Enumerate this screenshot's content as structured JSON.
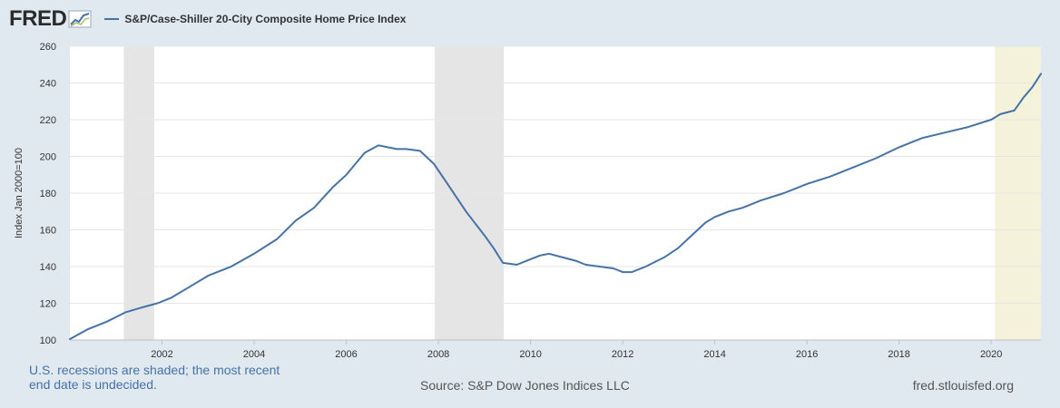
{
  "header": {
    "logo_text": "FRED",
    "legend_label": "S&P/Case-Shiller 20-City Composite Home Price Index"
  },
  "footer": {
    "note": "U.S. recessions are shaded; the most recent end date is undecided.",
    "source": "Source: S&P Dow Jones Indices LLC",
    "url": "fred.stlouisfed.org"
  },
  "colors": {
    "line": "#4572a7",
    "recession": "#e5e5e5",
    "undecided_recession": "#f5f2dc",
    "background": "#e1e9f0"
  },
  "chart_data": {
    "type": "line",
    "title": "",
    "xlabel": "",
    "ylabel": "Index Jan 2000=100",
    "ylim": [
      100,
      260
    ],
    "xlim": [
      2000.0,
      2021.08
    ],
    "yticks": [
      100,
      120,
      140,
      160,
      180,
      200,
      220,
      240,
      260
    ],
    "xticks": [
      "2002",
      "2004",
      "2006",
      "2008",
      "2010",
      "2012",
      "2014",
      "2016",
      "2018",
      "2020"
    ],
    "grid": true,
    "legend": "top-left",
    "recessions": [
      {
        "start": 2001.17,
        "end": 2001.83
      },
      {
        "start": 2007.92,
        "end": 2009.42
      },
      {
        "start": 2020.08,
        "end": 2021.08,
        "undecided": true
      }
    ],
    "series": [
      {
        "name": "S&P/Case-Shiller 20-City Composite Home Price Index",
        "x": [
          2000.0,
          2000.4,
          2000.8,
          2001.2,
          2001.6,
          2001.9,
          2002.2,
          2002.6,
          2003.0,
          2003.5,
          2004.0,
          2004.5,
          2004.9,
          2005.3,
          2005.7,
          2006.0,
          2006.2,
          2006.4,
          2006.7,
          2006.9,
          2007.1,
          2007.3,
          2007.6,
          2007.9,
          2008.2,
          2008.6,
          2009.0,
          2009.2,
          2009.4,
          2009.7,
          2010.0,
          2010.2,
          2010.4,
          2010.7,
          2011.0,
          2011.2,
          2011.5,
          2011.8,
          2012.0,
          2012.2,
          2012.5,
          2012.9,
          2013.2,
          2013.5,
          2013.8,
          2014.0,
          2014.3,
          2014.6,
          2015.0,
          2015.5,
          2016.0,
          2016.5,
          2017.0,
          2017.5,
          2018.0,
          2018.5,
          2019.0,
          2019.5,
          2020.0,
          2020.2,
          2020.5,
          2020.7,
          2020.9,
          2021.08
        ],
        "values": [
          100.5,
          106,
          110,
          115,
          118,
          120,
          123,
          129,
          135,
          140,
          147,
          155,
          165,
          172,
          183,
          190,
          196,
          202,
          206,
          205,
          204,
          204,
          203,
          196,
          185,
          170,
          157,
          150,
          142,
          141,
          144,
          146,
          147,
          145,
          143,
          141,
          140,
          139,
          137,
          137,
          140,
          145,
          150,
          157,
          164,
          167,
          170,
          172,
          176,
          180,
          185,
          189,
          194,
          199,
          205,
          210,
          213,
          216,
          220,
          223,
          225,
          232,
          238,
          245
        ]
      }
    ]
  }
}
